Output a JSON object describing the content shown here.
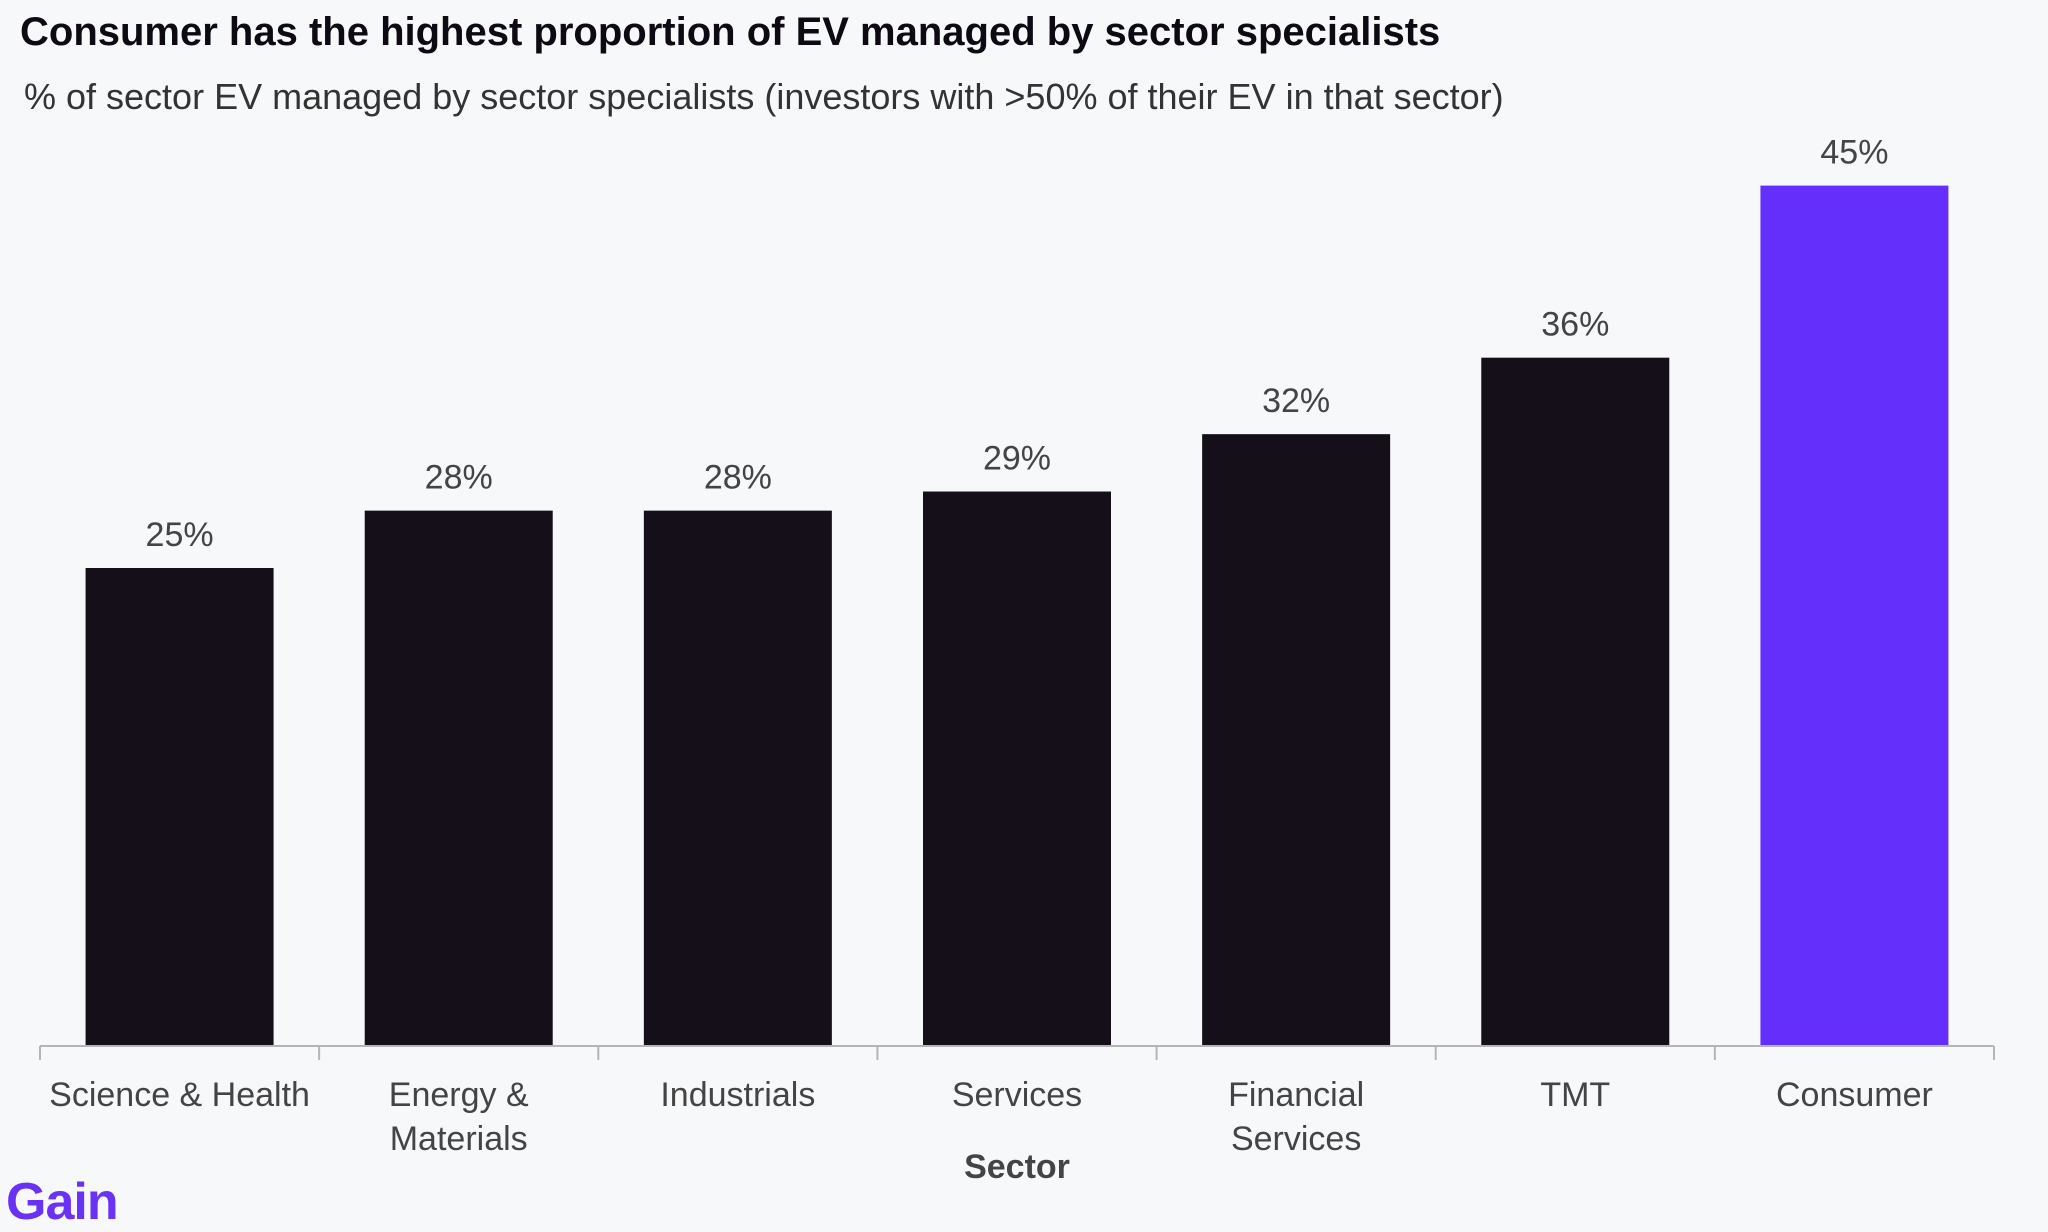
{
  "title": "Consumer has the highest proportion of EV managed by sector specialists",
  "subtitle": "% of sector EV managed by sector specialists (investors with >50% of their EV in that sector)",
  "logo": "Gain",
  "colors": {
    "background": "#f7f8fa",
    "bar_default": "#140f19",
    "bar_highlight": "#652ffb",
    "axis": "#b5b5b8",
    "label_text": "#444444",
    "logo": "#6a32f5"
  },
  "chart_data": {
    "type": "bar",
    "title": "Consumer has the highest proportion of EV managed by sector specialists",
    "subtitle": "% of sector EV managed by sector specialists (investors with >50% of their EV in that sector)",
    "xlabel": "Sector",
    "ylabel": "",
    "ylim": [
      0,
      50
    ],
    "grid": false,
    "categories": [
      [
        "Science & Health"
      ],
      [
        "Energy &",
        "Materials"
      ],
      [
        "Industrials"
      ],
      [
        "Services"
      ],
      [
        "Financial",
        "Services"
      ],
      [
        "TMT"
      ],
      [
        "Consumer"
      ]
    ],
    "values": [
      25,
      28,
      28,
      29,
      32,
      36,
      45
    ],
    "data_labels": [
      "25%",
      "28%",
      "28%",
      "29%",
      "32%",
      "36%",
      "45%"
    ],
    "highlight": "Consumer"
  }
}
